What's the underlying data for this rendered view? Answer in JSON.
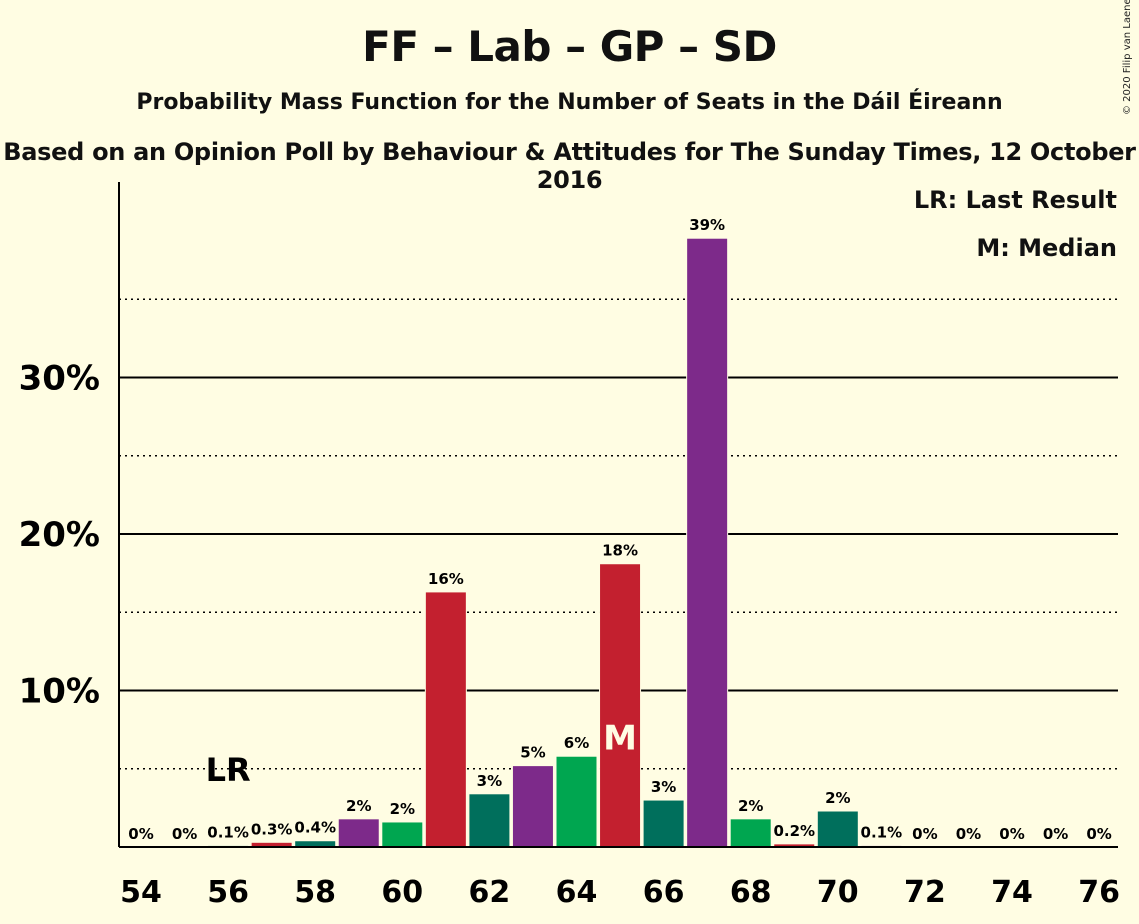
{
  "header": {
    "title": "FF – Lab – GP – SD",
    "subtitle": "Probability Mass Function for the Number of Seats in the Dáil Éireann",
    "source": "Based on an Opinion Poll by Behaviour & Attitudes for The Sunday Times, 12 October 2016",
    "copyright": "© 2020 Filip van Laenen"
  },
  "legend": {
    "last_result": "LR: Last Result",
    "median": "M: Median"
  },
  "colors": {
    "background": "#FFFDE3",
    "FF": "#006F5C",
    "Lab": "#C3202F",
    "GP": "#00A650",
    "SD": "#7D2A8A",
    "gridline": "#000000"
  },
  "chart_data": {
    "type": "bar",
    "title": "FF – Lab – GP – SD",
    "xlabel": "",
    "ylabel": "",
    "ylim": [
      0,
      42
    ],
    "yticks": [
      10,
      20,
      30
    ],
    "ytick_labels": [
      "10%",
      "20%",
      "30%"
    ],
    "minor_gridlines": [
      5,
      15,
      25,
      35
    ],
    "x": [
      54,
      55,
      56,
      57,
      58,
      59,
      60,
      61,
      62,
      63,
      64,
      65,
      66,
      67,
      68,
      69,
      70,
      71,
      72,
      73,
      74,
      75,
      76
    ],
    "values": [
      0,
      0,
      0.1,
      0.3,
      0.4,
      1.8,
      1.6,
      16.3,
      3.4,
      5.2,
      5.8,
      18.1,
      3.0,
      38.9,
      1.8,
      0.2,
      2.3,
      0.1,
      0,
      0,
      0,
      0,
      0
    ],
    "labels": [
      "0%",
      "0%",
      "0.1%",
      "0.3%",
      "0.4%",
      "2%",
      "2%",
      "16%",
      "3%",
      "5%",
      "6%",
      "18%",
      "3%",
      "39%",
      "2%",
      "0.2%",
      "2%",
      "0.1%",
      "0%",
      "0%",
      "0%",
      "0%",
      "0%"
    ],
    "bar_colors": [
      "#006F5C",
      "#C3202F",
      "#006F5C",
      "#C3202F",
      "#006F5C",
      "#7D2A8A",
      "#00A650",
      "#C3202F",
      "#006F5C",
      "#7D2A8A",
      "#00A650",
      "#C3202F",
      "#006F5C",
      "#7D2A8A",
      "#00A650",
      "#C3202F",
      "#006F5C",
      "#7D2A8A",
      "#00A650",
      "#C3202F",
      "#006F5C",
      "#7D2A8A",
      "#00A650"
    ],
    "xtick_values": [
      54,
      56,
      58,
      60,
      62,
      64,
      66,
      68,
      70,
      72,
      74,
      76
    ],
    "last_result": {
      "x": 56,
      "label": "LR"
    },
    "median": {
      "x": 65,
      "label": "M"
    },
    "grid": true,
    "legend_position": "top-right"
  }
}
